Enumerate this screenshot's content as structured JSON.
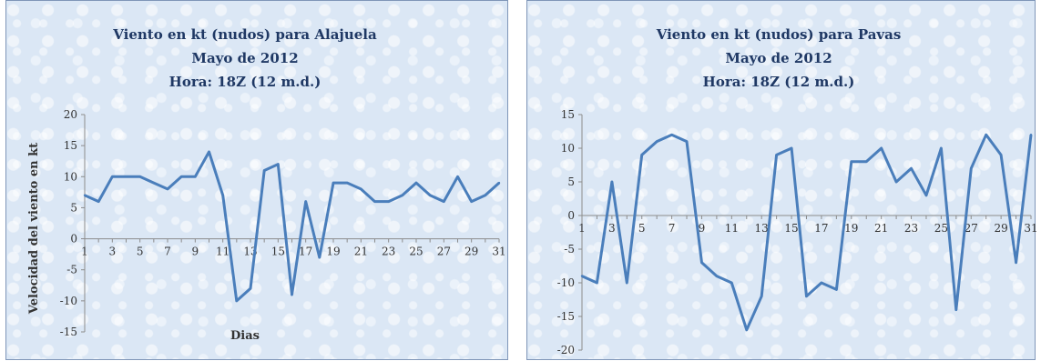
{
  "chart_data": [
    {
      "type": "line",
      "title": "Viento en kt (nudos) para Alajuela",
      "subtitle": [
        "Mayo de 2012",
        "Hora: 18Z (12 m.d.)"
      ],
      "xlabel": "Dias",
      "ylabel": "Velocidad del viento en kt",
      "x": [
        1,
        2,
        3,
        4,
        5,
        6,
        7,
        8,
        9,
        10,
        11,
        12,
        13,
        14,
        15,
        16,
        17,
        18,
        19,
        20,
        21,
        22,
        23,
        24,
        25,
        26,
        27,
        28,
        29,
        30,
        31
      ],
      "x_tick_labels": [
        "1",
        "3",
        "5",
        "7",
        "9",
        "11",
        "13",
        "15",
        "17",
        "19",
        "21",
        "23",
        "25",
        "27",
        "29",
        "31"
      ],
      "ylim": [
        -15,
        20
      ],
      "y_ticks": [
        "20",
        "15",
        "10",
        "5",
        "0",
        "-5",
        "-10",
        "-15"
      ],
      "grid": false,
      "series": [
        {
          "color": "#4a7ebb",
          "values": [
            7,
            6,
            10,
            10,
            10,
            9,
            8,
            10,
            10,
            14,
            7,
            -10,
            -8,
            11,
            12,
            -9,
            6,
            -3,
            9,
            9,
            8,
            6,
            6,
            7,
            9,
            7,
            6,
            10,
            6,
            7,
            9
          ]
        }
      ]
    },
    {
      "type": "line",
      "title": "Viento en kt (nudos) para Pavas",
      "subtitle": [
        "Mayo de 2012",
        "Hora: 18Z (12 m.d.)"
      ],
      "x": [
        1,
        2,
        3,
        4,
        5,
        6,
        7,
        8,
        9,
        10,
        11,
        12,
        13,
        14,
        15,
        16,
        17,
        18,
        19,
        20,
        21,
        22,
        23,
        24,
        25,
        26,
        27,
        28,
        29,
        30,
        31
      ],
      "x_tick_labels": [
        "1",
        "3",
        "5",
        "7",
        "9",
        "11",
        "13",
        "15",
        "17",
        "19",
        "21",
        "23",
        "25",
        "27",
        "29",
        "31"
      ],
      "ylim": [
        -20,
        15
      ],
      "y_ticks": [
        "15",
        "10",
        "5",
        "0",
        "-5",
        "-10",
        "-15",
        "-20"
      ],
      "grid": false,
      "series": [
        {
          "color": "#4a7ebb",
          "values": [
            -9,
            -10,
            5,
            -10,
            9,
            11,
            12,
            11,
            -7,
            -9,
            -10,
            -17,
            -12,
            9,
            10,
            -12,
            -10,
            -11,
            8,
            8,
            10,
            5,
            7,
            3,
            10,
            -14,
            7,
            12,
            9,
            -7,
            12
          ]
        }
      ]
    }
  ]
}
